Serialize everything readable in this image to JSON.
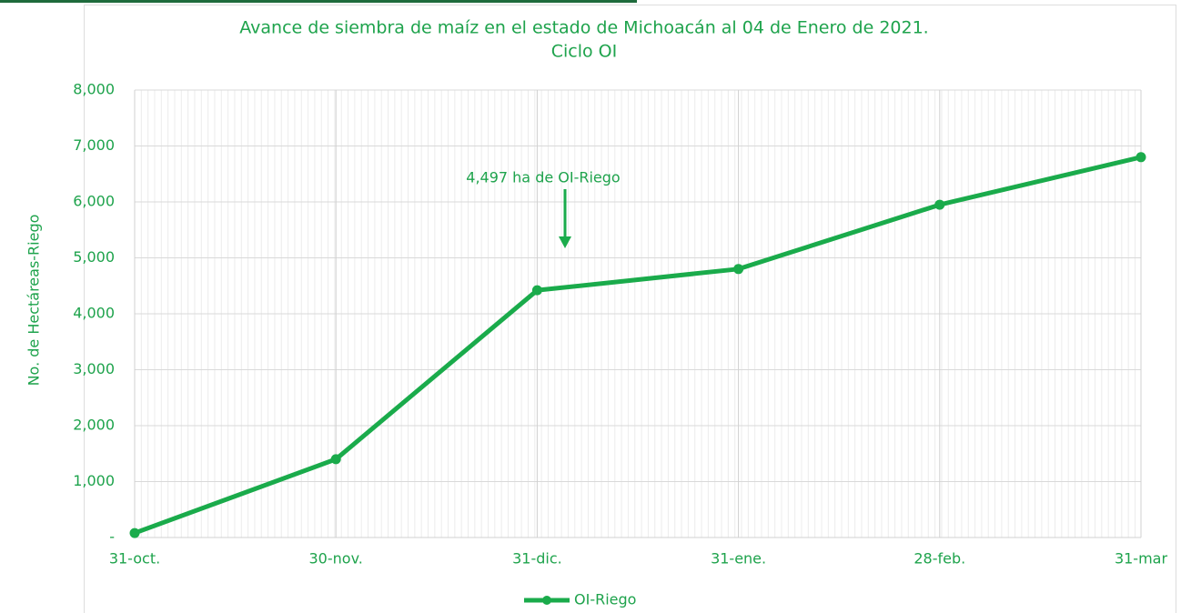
{
  "chart_data": {
    "type": "line",
    "title": "Avance de siembra de maíz en el estado de Michoacán al 04 de Enero de 2021.",
    "subtitle": "Ciclo OI",
    "y_label": "No. de Hectáreas-Riego",
    "categories": [
      "31-oct.",
      "30-nov.",
      "31-dic.",
      "31-ene.",
      "28-feb.",
      "31-mar"
    ],
    "series": [
      {
        "name": "OI-Riego",
        "color": "#1aab4b",
        "values": [
          80,
          1400,
          4420,
          4800,
          5950,
          6800
        ]
      }
    ],
    "ylim": [
      0,
      8000
    ],
    "yticks": [
      {
        "value": 0,
        "label": "-"
      },
      {
        "value": 1000,
        "label": "1,000"
      },
      {
        "value": 2000,
        "label": "2,000"
      },
      {
        "value": 3000,
        "label": "3,000"
      },
      {
        "value": 4000,
        "label": "4,000"
      },
      {
        "value": 5000,
        "label": "5,000"
      },
      {
        "value": 6000,
        "label": "6,000"
      },
      {
        "value": 7000,
        "label": "7,000"
      },
      {
        "value": 8000,
        "label": "8,000"
      }
    ],
    "annotation": "4,497 ha de OI-Riego",
    "grid": true,
    "legend": "bottom"
  }
}
